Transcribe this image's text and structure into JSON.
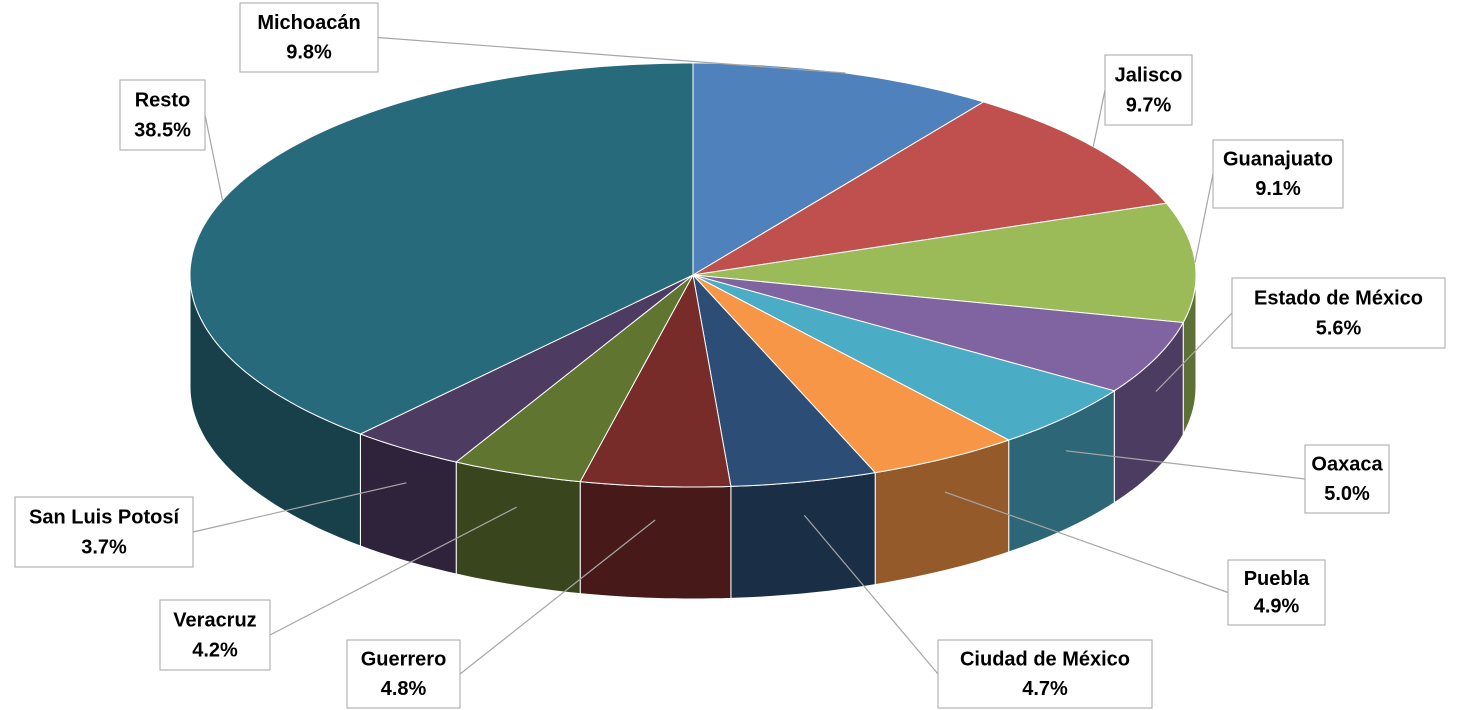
{
  "chart_data": {
    "type": "pie",
    "categories": [
      "Michoacán",
      "Jalisco",
      "Guanajuato",
      "Estado de México",
      "Oaxaca",
      "Puebla",
      "Ciudad de México",
      "Guerrero",
      "Veracruz",
      "San Luis Potosí",
      "Resto"
    ],
    "values": [
      9.8,
      9.7,
      9.1,
      5.6,
      5.0,
      4.9,
      4.7,
      4.8,
      4.2,
      3.7,
      38.5
    ],
    "value_labels": [
      "9.8%",
      "9.7%",
      "9.1%",
      "5.6%",
      "5.0%",
      "4.9%",
      "4.7%",
      "4.8%",
      "4.2%",
      "3.7%",
      "38.5%"
    ],
    "colors": [
      "#4f81bd",
      "#c0504d",
      "#9bbb59",
      "#8064a2",
      "#4bacc6",
      "#f79646",
      "#2c4d75",
      "#772c2a",
      "#5f7530",
      "#4d3b62",
      "#276a7c"
    ]
  }
}
